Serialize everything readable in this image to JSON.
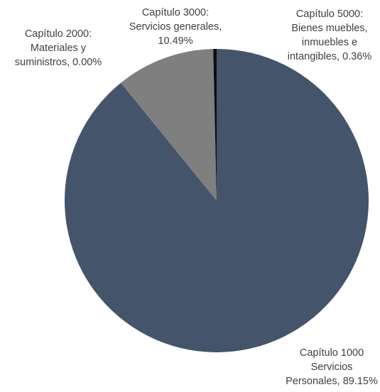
{
  "chart_data": {
    "type": "pie",
    "title": "",
    "slices": [
      {
        "label_lines": [
          "Capítulo 1000",
          "Servicios",
          "Personales, 89.15%"
        ],
        "value": 89.15,
        "color": "#44546a"
      },
      {
        "label_lines": [
          "Capítulo 2000:",
          "Materiales y",
          "suministros, 0.00%"
        ],
        "value": 0.0,
        "color": "#a5a5a5"
      },
      {
        "label_lines": [
          "Capítulo 3000:",
          "Servicios generales,",
          "10.49%"
        ],
        "value": 10.49,
        "color": "#7f7f7f"
      },
      {
        "label_lines": [
          "Capítulo 5000:",
          "Bienes muebles,",
          "inmuebles e",
          "intangibles, 0.36%"
        ],
        "value": 0.36,
        "color": "#0d0d0d"
      }
    ],
    "start_angle_deg": 0,
    "direction": "clockwise",
    "legend": "none",
    "data_labels": "outside"
  }
}
